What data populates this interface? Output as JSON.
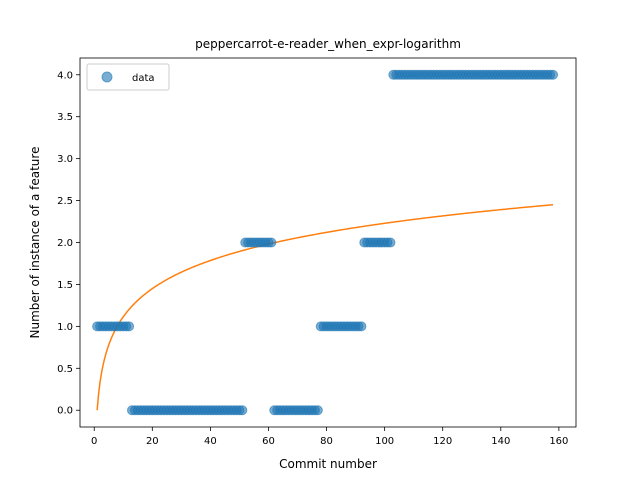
{
  "chart_data": {
    "type": "scatter",
    "title": "peppercarrot-e-reader_when_expr-logarithm",
    "xlabel": "Commit number",
    "ylabel": "Number of instance of a feature",
    "xlim": [
      -4.9,
      165.9
    ],
    "ylim": [
      -0.2,
      4.2
    ],
    "xticks": [
      0,
      20,
      40,
      60,
      80,
      100,
      120,
      140,
      160
    ],
    "yticks": [
      0.0,
      0.5,
      1.0,
      1.5,
      2.0,
      2.5,
      3.0,
      3.5,
      4.0
    ],
    "xtick_labels": [
      "0",
      "20",
      "40",
      "60",
      "80",
      "100",
      "120",
      "140",
      "160"
    ],
    "ytick_labels": [
      "0.0",
      "0.5",
      "1.0",
      "1.5",
      "2.0",
      "2.5",
      "3.0",
      "3.5",
      "4.0"
    ],
    "grid": false,
    "legend": {
      "position": "top-left",
      "entries": [
        "data"
      ]
    },
    "series": [
      {
        "name": "data",
        "kind": "scatter",
        "color": "#1f77b4",
        "segments": [
          {
            "x_start": 1,
            "x_end": 12,
            "y": 1
          },
          {
            "x_start": 13,
            "x_end": 51,
            "y": 0
          },
          {
            "x_start": 52,
            "x_end": 61,
            "y": 2
          },
          {
            "x_start": 62,
            "x_end": 77,
            "y": 0
          },
          {
            "x_start": 78,
            "x_end": 92,
            "y": 1
          },
          {
            "x_start": 93,
            "x_end": 102,
            "y": 2
          },
          {
            "x_start": 103,
            "x_end": 158,
            "y": 4
          }
        ]
      },
      {
        "kind": "line",
        "color": "#ff7f0e",
        "function": "logarithmic",
        "coefficients": {
          "a": 0.484,
          "b": 0.0
        },
        "x_range": [
          1,
          158
        ]
      }
    ]
  }
}
